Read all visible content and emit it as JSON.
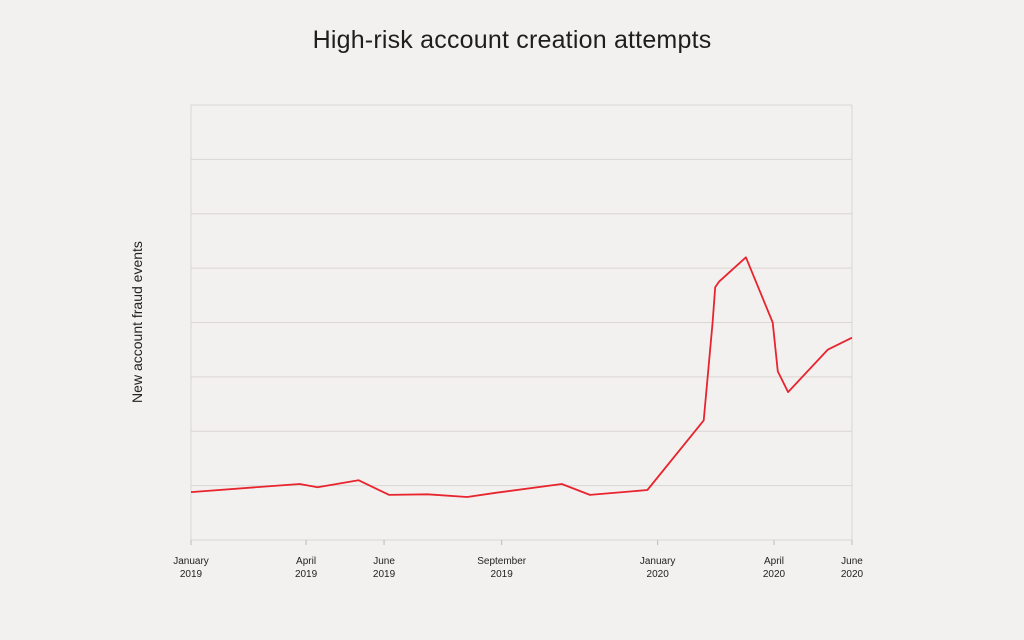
{
  "chart_data": {
    "type": "line",
    "title": "High-risk account creation attempts",
    "xlabel": "",
    "ylabel": "New account fraud events",
    "y_ticks_labeled": false,
    "grid": true,
    "line_color": "#e8242e",
    "x_ticks": [
      {
        "date": "2019-01-01",
        "month": "January",
        "year": "2019"
      },
      {
        "date": "2019-04-01",
        "month": "April",
        "year": "2019"
      },
      {
        "date": "2019-06-01",
        "month": "June",
        "year": "2019"
      },
      {
        "date": "2019-09-01",
        "month": "September",
        "year": "2019"
      },
      {
        "date": "2020-01-01",
        "month": "January",
        "year": "2020"
      },
      {
        "date": "2020-04-01",
        "month": "April",
        "year": "2020"
      },
      {
        "date": "2020-06-01",
        "month": "June",
        "year": "2020"
      }
    ],
    "xlim": [
      "2019-01-01",
      "2020-06-01"
    ],
    "ylim": [
      0,
      8
    ],
    "series": [
      {
        "points": [
          {
            "x": "2019-01-01",
            "y": 0.88
          },
          {
            "x": "2019-03-27",
            "y": 1.03
          },
          {
            "x": "2019-04-10",
            "y": 0.97
          },
          {
            "x": "2019-05-12",
            "y": 1.1
          },
          {
            "x": "2019-06-05",
            "y": 0.83
          },
          {
            "x": "2019-07-05",
            "y": 0.84
          },
          {
            "x": "2019-08-05",
            "y": 0.79
          },
          {
            "x": "2019-08-28",
            "y": 0.87
          },
          {
            "x": "2019-10-18",
            "y": 1.03
          },
          {
            "x": "2019-11-09",
            "y": 0.83
          },
          {
            "x": "2019-12-24",
            "y": 0.92
          },
          {
            "x": "2020-02-06",
            "y": 2.2
          },
          {
            "x": "2020-02-13",
            "y": 4.0
          },
          {
            "x": "2020-02-15",
            "y": 4.65
          },
          {
            "x": "2020-02-18",
            "y": 4.75
          },
          {
            "x": "2020-03-10",
            "y": 5.2
          },
          {
            "x": "2020-03-31",
            "y": 4.0
          },
          {
            "x": "2020-04-04",
            "y": 3.1
          },
          {
            "x": "2020-04-12",
            "y": 2.72
          },
          {
            "x": "2020-05-13",
            "y": 3.5
          },
          {
            "x": "2020-06-01",
            "y": 3.72
          }
        ]
      }
    ]
  }
}
